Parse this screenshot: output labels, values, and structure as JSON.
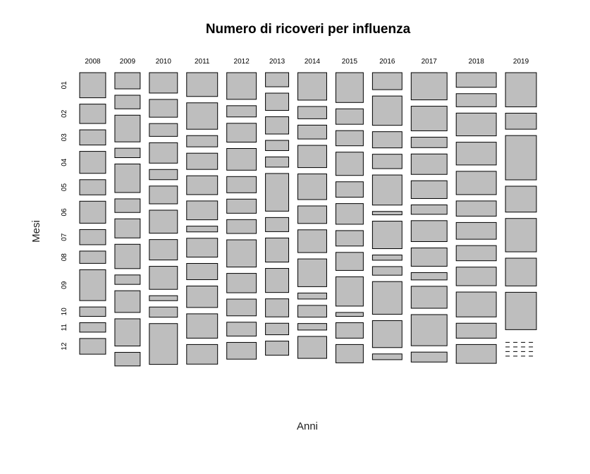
{
  "chart_data": {
    "type": "mosaic",
    "title": "Numero di ricoveri per influenza",
    "xlabel": "Anni",
    "ylabel": "Mesi",
    "years": [
      "2008",
      "2009",
      "2010",
      "2011",
      "2012",
      "2013",
      "2014",
      "2015",
      "2016",
      "2017",
      "2018",
      "2019"
    ],
    "months": [
      "01",
      "02",
      "03",
      "04",
      "05",
      "06",
      "07",
      "08",
      "09",
      "10",
      "11",
      "12"
    ],
    "year_totals": [
      37,
      36,
      40,
      44,
      42,
      33,
      41,
      39,
      42,
      51,
      57,
      44
    ],
    "proportions": {
      "2008": [
        0.096,
        0.074,
        0.058,
        0.084,
        0.058,
        0.084,
        0.058,
        0.047,
        0.118,
        0.036,
        0.036,
        0.06
      ],
      "2009": [
        0.062,
        0.052,
        0.102,
        0.036,
        0.109,
        0.052,
        0.073,
        0.093,
        0.036,
        0.083,
        0.104,
        0.052
      ],
      "2010": [
        0.078,
        0.068,
        0.049,
        0.078,
        0.039,
        0.068,
        0.088,
        0.078,
        0.088,
        0.019,
        0.039,
        0.156
      ],
      "2011": [
        0.091,
        0.101,
        0.043,
        0.062,
        0.072,
        0.072,
        0.022,
        0.072,
        0.062,
        0.082,
        0.093,
        0.075
      ],
      "2012": [
        0.102,
        0.043,
        0.072,
        0.083,
        0.062,
        0.054,
        0.053,
        0.104,
        0.074,
        0.064,
        0.053,
        0.064
      ],
      "2013": [
        0.054,
        0.066,
        0.066,
        0.039,
        0.039,
        0.144,
        0.054,
        0.092,
        0.092,
        0.069,
        0.044,
        0.054
      ],
      "2014": [
        0.105,
        0.047,
        0.053,
        0.085,
        0.098,
        0.067,
        0.087,
        0.106,
        0.023,
        0.045,
        0.025,
        0.084
      ],
      "2015": [
        0.114,
        0.059,
        0.058,
        0.089,
        0.059,
        0.079,
        0.059,
        0.069,
        0.112,
        0.015,
        0.059,
        0.07
      ],
      "2016": [
        0.065,
        0.112,
        0.062,
        0.055,
        0.115,
        0.013,
        0.105,
        0.02,
        0.033,
        0.125,
        0.103,
        0.022
      ],
      "2017": [
        0.104,
        0.094,
        0.04,
        0.078,
        0.068,
        0.036,
        0.08,
        0.07,
        0.028,
        0.084,
        0.119,
        0.038
      ],
      "2018": [
        0.056,
        0.05,
        0.087,
        0.087,
        0.089,
        0.058,
        0.064,
        0.058,
        0.071,
        0.095,
        0.057,
        0.072
      ],
      "2019": [
        0.128,
        0.06,
        0.166,
        0.097,
        0.125,
        0.104,
        0.14,
        0.0,
        0.0,
        0.0,
        0.0,
        0.0
      ]
    },
    "empty_cells": {
      "2019": [
        "09",
        "10",
        "11",
        "12"
      ]
    },
    "fill_color": "#bebebe",
    "border_color": "#000000"
  }
}
